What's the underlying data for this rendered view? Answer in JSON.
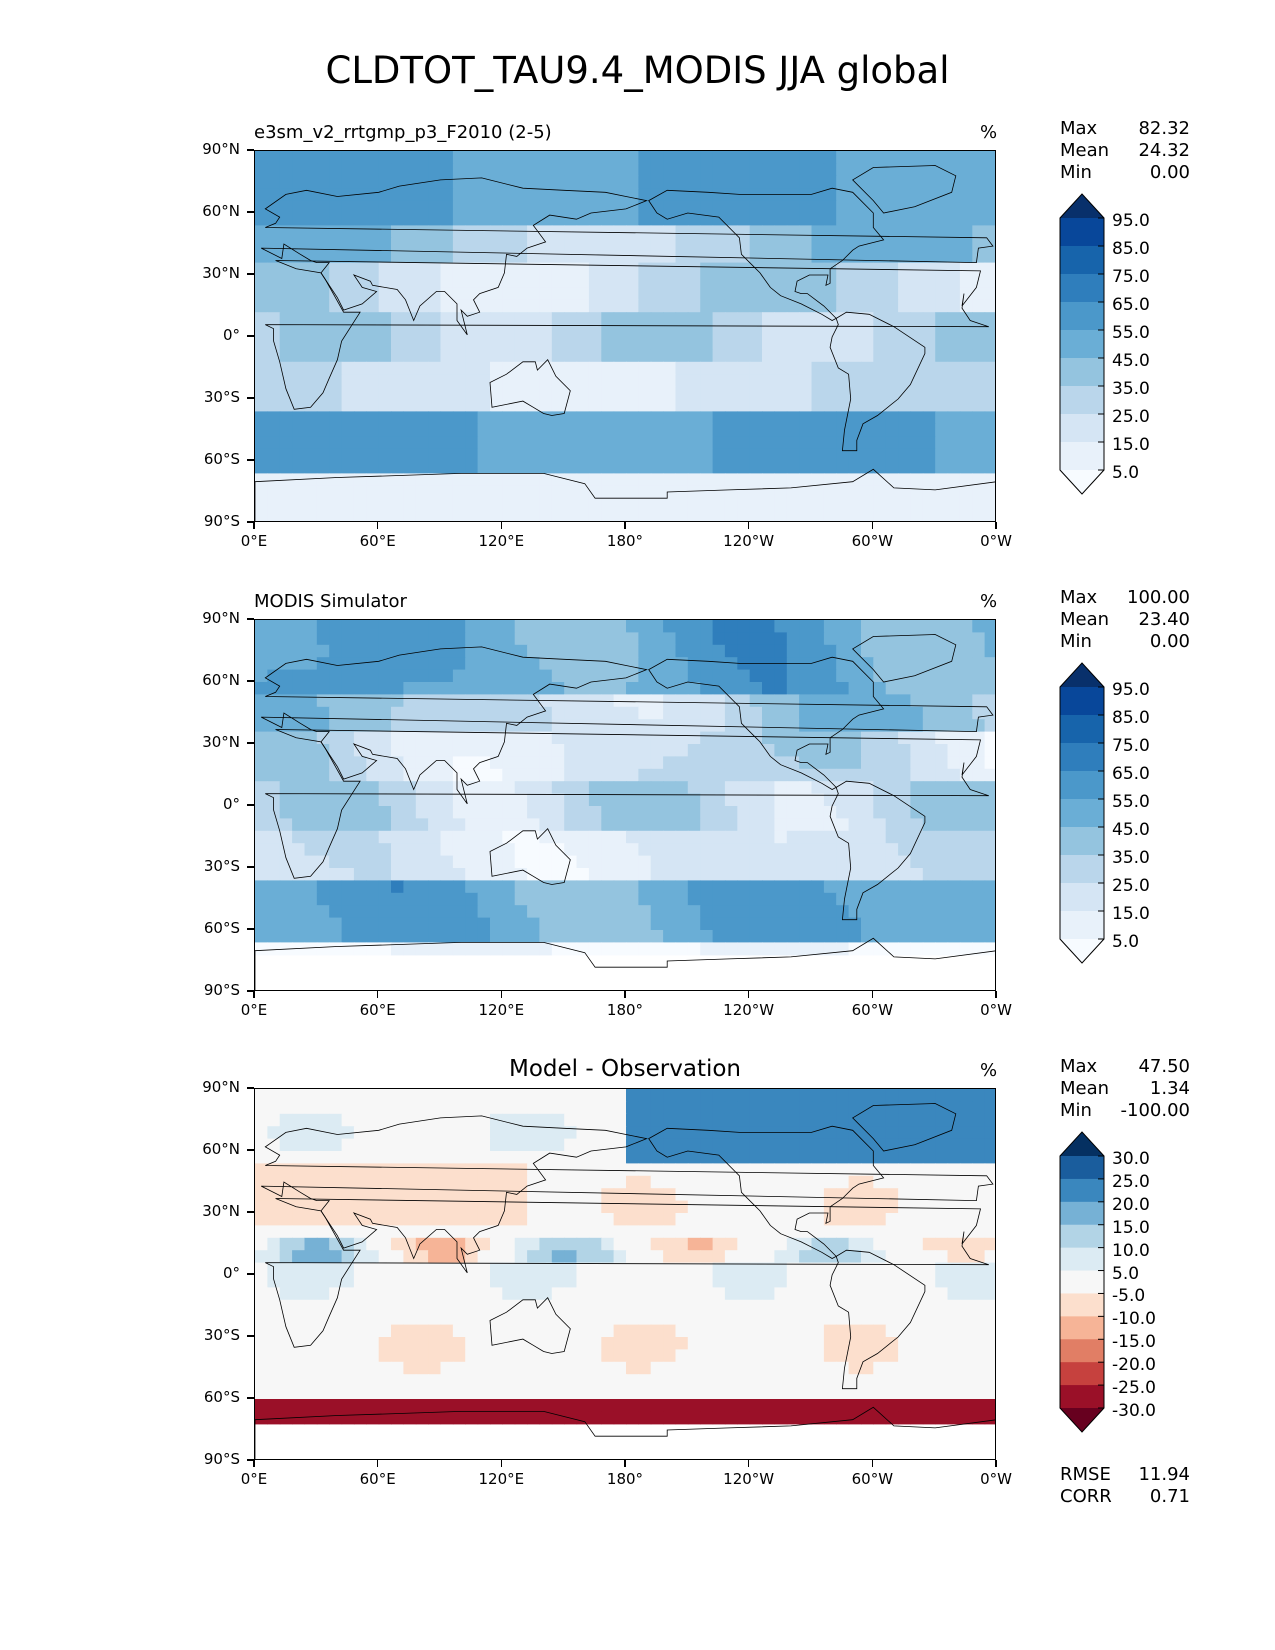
{
  "title": "CLDTOT_TAU9.4_MODIS JJA global",
  "lat_labels": [
    "90°N",
    "60°N",
    "30°N",
    "0°",
    "30°S",
    "60°S",
    "90°S"
  ],
  "lon_labels": [
    "0°E",
    "60°E",
    "120°E",
    "180°",
    "120°W",
    "60°W",
    "0°W"
  ],
  "panels": [
    {
      "title": "e3sm_v2_rrtgmp_p3_F2010 (2-5)",
      "units": "%",
      "stats": {
        "max_label": "Max",
        "max": "82.32",
        "mean_label": "Mean",
        "mean": "24.32",
        "min_label": "Min",
        "min": "0.00"
      },
      "colorbar_labels": [
        "95.0",
        "85.0",
        "75.0",
        "65.0",
        "55.0",
        "45.0",
        "35.0",
        "25.0",
        "15.0",
        "5.0"
      ],
      "colorbar_colors": [
        "#08306b",
        "#08479a",
        "#1764ab",
        "#2f7ebc",
        "#4b98ca",
        "#6aaed6",
        "#94c4df",
        "#bad6eb",
        "#d5e5f4",
        "#e8f1fa",
        "#f7fbff"
      ]
    },
    {
      "title": "MODIS Simulator",
      "units": "%",
      "stats": {
        "max_label": "Max",
        "max": "100.00",
        "mean_label": "Mean",
        "mean": "23.40",
        "min_label": "Min",
        "min": "0.00"
      },
      "colorbar_labels": [
        "95.0",
        "85.0",
        "75.0",
        "65.0",
        "55.0",
        "45.0",
        "35.0",
        "25.0",
        "15.0",
        "5.0"
      ],
      "colorbar_colors": [
        "#08306b",
        "#08479a",
        "#1764ab",
        "#2f7ebc",
        "#4b98ca",
        "#6aaed6",
        "#94c4df",
        "#bad6eb",
        "#d5e5f4",
        "#e8f1fa",
        "#f7fbff"
      ]
    },
    {
      "title": "Model - Observation",
      "units": "%",
      "stats": {
        "max_label": "Max",
        "max": "47.50",
        "mean_label": "Mean",
        "mean": "1.34",
        "min_label": "Min",
        "min": "-100.00"
      },
      "extra": {
        "rmse_label": "RMSE",
        "rmse": "11.94",
        "corr_label": "CORR",
        "corr": "0.71"
      },
      "colorbar_labels": [
        "30.0",
        "25.0",
        "20.0",
        "15.0",
        "10.0",
        "5.0",
        "-5.0",
        "-10.0",
        "-15.0",
        "-20.0",
        "-25.0",
        "-30.0"
      ],
      "colorbar_colors": [
        "#053061",
        "#1a5d9d",
        "#3a87be",
        "#76b1d5",
        "#b2d4e6",
        "#dcebf3",
        "#f7f7f7",
        "#fcdfcd",
        "#f6b497",
        "#e17e65",
        "#c6413e",
        "#9a1028",
        "#67001f"
      ]
    }
  ],
  "chart_data": [
    {
      "type": "heatmap",
      "title": "e3sm_v2_rrtgmp_p3_F2010 (2-5)",
      "units": "%",
      "x_ticks": [
        "0°E",
        "60°E",
        "120°E",
        "180°",
        "120°W",
        "60°W",
        "0°W"
      ],
      "y_ticks": [
        "90°N",
        "60°N",
        "30°N",
        "0°",
        "30°S",
        "60°S",
        "90°S"
      ],
      "xlim": [
        0,
        360
      ],
      "ylim": [
        -90,
        90
      ],
      "colorbar_levels": [
        5,
        15,
        25,
        35,
        45,
        55,
        65,
        75,
        85,
        95
      ],
      "max": 82.32,
      "mean": 24.32,
      "min": 0.0
    },
    {
      "type": "heatmap",
      "title": "MODIS Simulator",
      "units": "%",
      "x_ticks": [
        "0°E",
        "60°E",
        "120°E",
        "180°",
        "120°W",
        "60°W",
        "0°W"
      ],
      "y_ticks": [
        "90°N",
        "60°N",
        "30°N",
        "0°",
        "30°S",
        "60°S",
        "90°S"
      ],
      "xlim": [
        0,
        360
      ],
      "ylim": [
        -90,
        90
      ],
      "colorbar_levels": [
        5,
        15,
        25,
        35,
        45,
        55,
        65,
        75,
        85,
        95
      ],
      "max": 100.0,
      "mean": 23.4,
      "min": 0.0
    },
    {
      "type": "heatmap",
      "title": "Model - Observation",
      "units": "%",
      "x_ticks": [
        "0°E",
        "60°E",
        "120°E",
        "180°",
        "120°W",
        "60°W",
        "0°W"
      ],
      "y_ticks": [
        "90°N",
        "60°N",
        "30°N",
        "0°",
        "30°S",
        "60°S",
        "90°S"
      ],
      "xlim": [
        0,
        360
      ],
      "ylim": [
        -90,
        90
      ],
      "colorbar_levels": [
        -30,
        -25,
        -20,
        -15,
        -10,
        -5,
        5,
        10,
        15,
        20,
        25,
        30
      ],
      "max": 47.5,
      "mean": 1.34,
      "min": -100.0,
      "rmse": 11.94,
      "corr": 0.71
    }
  ]
}
